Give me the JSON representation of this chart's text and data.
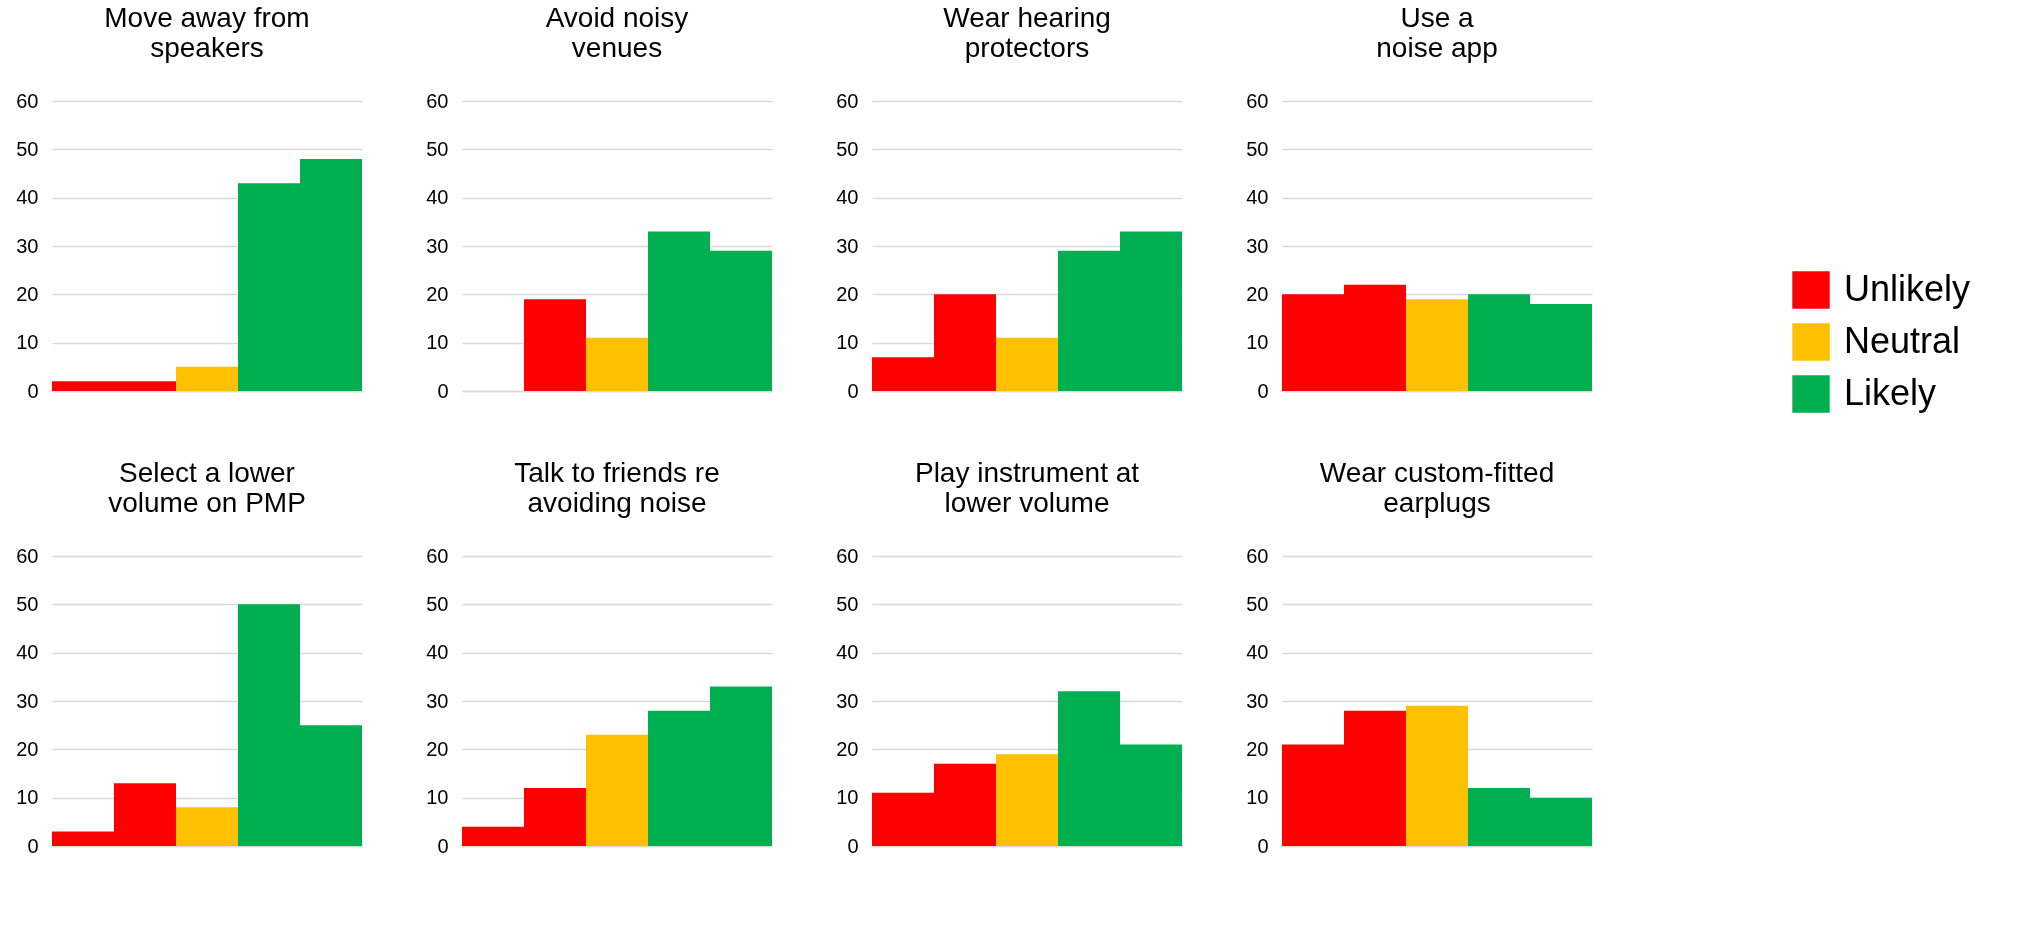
{
  "chart_data": [
    {
      "type": "bar",
      "title": "Move away from\nspeakers",
      "categories": [
        null,
        null,
        null,
        null,
        null
      ],
      "ylim": [
        0,
        60
      ],
      "yticks": [
        0,
        10,
        20,
        30,
        40,
        50,
        60
      ],
      "grid": "y",
      "tick_labels": "y",
      "series": [
        {
          "color": "#ff0000",
          "values": [
            2,
            2,
            null,
            null,
            null
          ]
        },
        {
          "color": "#ffc000",
          "values": [
            null,
            null,
            5,
            null,
            null
          ]
        },
        {
          "color": "#00b050",
          "values": [
            null,
            null,
            null,
            43,
            48
          ]
        }
      ]
    },
    {
      "type": "bar",
      "title": "Avoid noisy\nvenues",
      "categories": [
        null,
        null,
        null,
        null,
        null
      ],
      "ylim": [
        0,
        60
      ],
      "yticks": [
        0,
        10,
        20,
        30,
        40,
        50,
        60
      ],
      "grid": "y",
      "tick_labels": "y",
      "series": [
        {
          "color": "#ff0000",
          "values": [
            0,
            19,
            null,
            null,
            null
          ]
        },
        {
          "color": "#ffc000",
          "values": [
            null,
            null,
            11,
            null,
            null
          ]
        },
        {
          "color": "#00b050",
          "values": [
            null,
            null,
            null,
            33,
            29
          ]
        }
      ]
    },
    {
      "type": "bar",
      "title": "Wear hearing\nprotectors",
      "categories": [
        null,
        null,
        null,
        null,
        null
      ],
      "ylim": [
        0,
        60
      ],
      "yticks": [
        0,
        10,
        20,
        30,
        40,
        50,
        60
      ],
      "grid": "y",
      "tick_labels": "y",
      "series": [
        {
          "color": "#ff0000",
          "values": [
            7,
            20,
            null,
            null,
            null
          ]
        },
        {
          "color": "#ffc000",
          "values": [
            null,
            null,
            11,
            null,
            null
          ]
        },
        {
          "color": "#00b050",
          "values": [
            null,
            null,
            null,
            29,
            33
          ]
        }
      ]
    },
    {
      "type": "bar",
      "title": "Use a\nnoise app",
      "categories": [
        null,
        null,
        null,
        null,
        null
      ],
      "ylim": [
        0,
        60
      ],
      "yticks": [
        0,
        10,
        20,
        30,
        40,
        50,
        60
      ],
      "grid": "y",
      "tick_labels": "y",
      "legend": "right",
      "series": [
        {
          "name": "Unlikely",
          "color": "#ff0000",
          "values": [
            20,
            22,
            null,
            null,
            null
          ]
        },
        {
          "name": "Neutral",
          "color": "#ffc000",
          "values": [
            null,
            null,
            19,
            null,
            null
          ]
        },
        {
          "name": "Likely",
          "color": "#00b050",
          "values": [
            null,
            null,
            null,
            20,
            18
          ]
        }
      ]
    },
    {
      "type": "bar",
      "title": "Select a lower\nvolume on PMP",
      "categories": [
        null,
        null,
        null,
        null,
        null
      ],
      "ylim": [
        0,
        60
      ],
      "yticks": [
        0,
        10,
        20,
        30,
        40,
        50,
        60
      ],
      "grid": "y",
      "tick_labels": "y",
      "series": [
        {
          "color": "#ff0000",
          "values": [
            3,
            13,
            null,
            null,
            null
          ]
        },
        {
          "color": "#ffc000",
          "values": [
            null,
            null,
            8,
            null,
            null
          ]
        },
        {
          "color": "#00b050",
          "values": [
            null,
            null,
            null,
            50,
            25
          ]
        }
      ]
    },
    {
      "type": "bar",
      "title": "Talk to friends re\navoiding noise",
      "categories": [
        null,
        null,
        null,
        null,
        null
      ],
      "ylim": [
        0,
        60
      ],
      "yticks": [
        0,
        10,
        20,
        30,
        40,
        50,
        60
      ],
      "grid": "y",
      "tick_labels": "y",
      "series": [
        {
          "color": "#ff0000",
          "values": [
            4,
            12,
            null,
            null,
            null
          ]
        },
        {
          "color": "#ffc000",
          "values": [
            null,
            null,
            23,
            null,
            null
          ]
        },
        {
          "color": "#00b050",
          "values": [
            null,
            null,
            null,
            28,
            33
          ]
        }
      ]
    },
    {
      "type": "bar",
      "title": "Play instrument at\nlower volume",
      "categories": [
        null,
        null,
        null,
        null,
        null
      ],
      "ylim": [
        0,
        60
      ],
      "yticks": [
        0,
        10,
        20,
        30,
        40,
        50,
        60
      ],
      "grid": "y",
      "tick_labels": "y",
      "series": [
        {
          "color": "#ff0000",
          "values": [
            11,
            17,
            null,
            null,
            null
          ]
        },
        {
          "color": "#ffc000",
          "values": [
            null,
            null,
            19,
            null,
            null
          ]
        },
        {
          "color": "#00b050",
          "values": [
            null,
            null,
            null,
            32,
            21
          ]
        }
      ]
    },
    {
      "type": "bar",
      "title": "Wear custom-fitted\nearplugs",
      "categories": [
        null,
        null,
        null,
        null,
        null
      ],
      "ylim": [
        0,
        60
      ],
      "yticks": [
        0,
        10,
        20,
        30,
        40,
        50,
        60
      ],
      "grid": "y",
      "tick_labels": "y",
      "series": [
        {
          "color": "#ff0000",
          "values": [
            21,
            28,
            null,
            null,
            null
          ]
        },
        {
          "color": "#ffc000",
          "values": [
            null,
            null,
            29,
            null,
            null
          ]
        },
        {
          "color": "#00b050",
          "values": [
            null,
            null,
            null,
            12,
            10
          ]
        }
      ]
    }
  ]
}
